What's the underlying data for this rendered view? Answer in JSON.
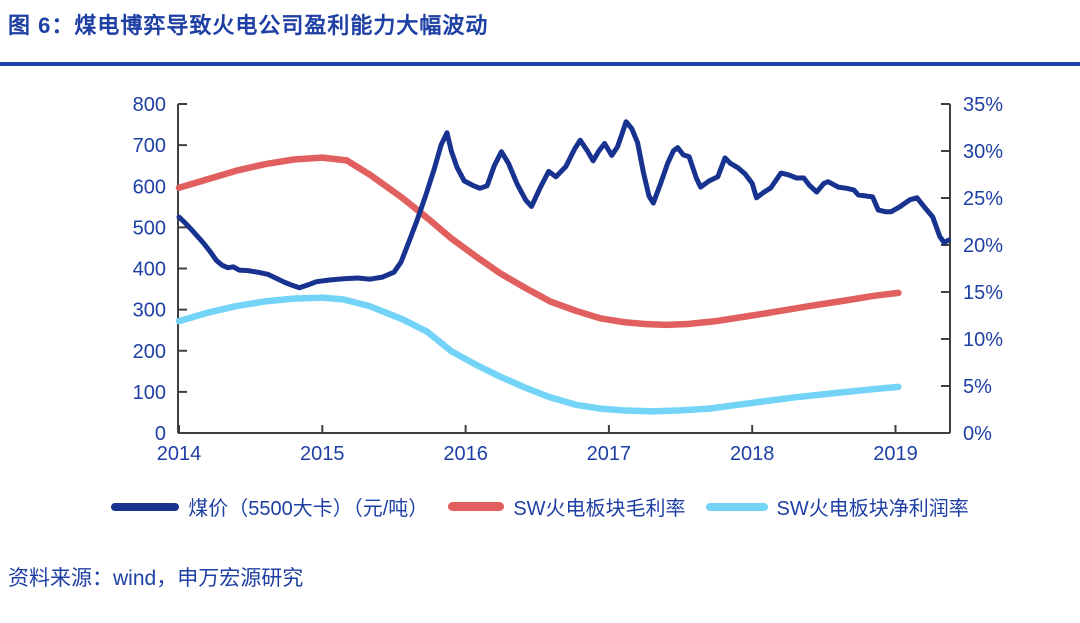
{
  "title": "图 6：煤电博弈导致火电公司盈利能力大幅波动",
  "source": "资料来源：wind，申万宏源研究",
  "colors": {
    "navy_text": "#1e3fa4",
    "coal_line": "#17338f",
    "gross_margin_line": "#e25f5f",
    "net_margin_line": "#74d4f8",
    "axis_line": "#3f3f3f",
    "title_rule": "#1e3fa4"
  },
  "legend": [
    {
      "label": "煤价（5500大卡）（元/吨）",
      "series": "coal-price"
    },
    {
      "label": "SW火电板块毛利率",
      "series": "gross-margin"
    },
    {
      "label": "SW火电板块净利润率",
      "series": "net-margin"
    }
  ],
  "chart_data": {
    "type": "line",
    "title": "图 6：煤电博弈导致火电公司盈利能力大幅波动",
    "x_axis": {
      "labels": [
        "2014",
        "2015",
        "2016",
        "2017",
        "2018",
        "2019"
      ],
      "range": [
        2014,
        2019.39
      ],
      "grid": false
    },
    "left_axis": {
      "labels": [
        "800",
        "700",
        "600",
        "500",
        "400",
        "300",
        "200",
        "100",
        "0"
      ],
      "range": [
        0,
        800
      ],
      "units": "元/吨"
    },
    "right_axis": {
      "labels": [
        "35%",
        "30%",
        "25%",
        "20%",
        "15%",
        "10%",
        "5%",
        "0%"
      ],
      "range": [
        0,
        35
      ],
      "units": "%"
    },
    "legend_position": "bottom",
    "series": [
      {
        "name": "煤价（5500大卡）（元/吨）",
        "axis": "left",
        "color": "#17338f",
        "width": 5,
        "points": [
          [
            2014.0,
            525
          ],
          [
            2014.04,
            512
          ],
          [
            2014.08,
            497
          ],
          [
            2014.13,
            478
          ],
          [
            2014.17,
            462
          ],
          [
            2014.22,
            440
          ],
          [
            2014.26,
            420
          ],
          [
            2014.3,
            408
          ],
          [
            2014.34,
            402
          ],
          [
            2014.38,
            404
          ],
          [
            2014.42,
            396
          ],
          [
            2014.48,
            395
          ],
          [
            2014.55,
            391
          ],
          [
            2014.62,
            386
          ],
          [
            2014.68,
            376
          ],
          [
            2014.74,
            366
          ],
          [
            2014.8,
            358
          ],
          [
            2014.84,
            353
          ],
          [
            2014.9,
            360
          ],
          [
            2014.96,
            368
          ],
          [
            2015.05,
            372
          ],
          [
            2015.15,
            375
          ],
          [
            2015.25,
            377
          ],
          [
            2015.33,
            374
          ],
          [
            2015.42,
            379
          ],
          [
            2015.5,
            391
          ],
          [
            2015.55,
            416
          ],
          [
            2015.6,
            461
          ],
          [
            2015.66,
            516
          ],
          [
            2015.72,
            576
          ],
          [
            2015.78,
            641
          ],
          [
            2015.83,
            701
          ],
          [
            2015.87,
            730
          ],
          [
            2015.9,
            686
          ],
          [
            2015.94,
            646
          ],
          [
            2015.99,
            613
          ],
          [
            2016.05,
            602
          ],
          [
            2016.1,
            595
          ],
          [
            2016.15,
            601
          ],
          [
            2016.2,
            650
          ],
          [
            2016.25,
            684
          ],
          [
            2016.3,
            655
          ],
          [
            2016.36,
            605
          ],
          [
            2016.42,
            566
          ],
          [
            2016.46,
            551
          ],
          [
            2016.52,
            596
          ],
          [
            2016.58,
            636
          ],
          [
            2016.63,
            623
          ],
          [
            2016.7,
            648
          ],
          [
            2016.76,
            690
          ],
          [
            2016.8,
            712
          ],
          [
            2016.85,
            686
          ],
          [
            2016.89,
            662
          ],
          [
            2016.93,
            686
          ],
          [
            2016.97,
            704
          ],
          [
            2017.02,
            675
          ],
          [
            2017.06,
            696
          ],
          [
            2017.09,
            726
          ],
          [
            2017.12,
            757
          ],
          [
            2017.16,
            740
          ],
          [
            2017.2,
            706
          ],
          [
            2017.24,
            635
          ],
          [
            2017.28,
            576
          ],
          [
            2017.31,
            559
          ],
          [
            2017.36,
            606
          ],
          [
            2017.41,
            656
          ],
          [
            2017.45,
            686
          ],
          [
            2017.48,
            694
          ],
          [
            2017.52,
            676
          ],
          [
            2017.56,
            672
          ],
          [
            2017.61,
            620
          ],
          [
            2017.64,
            598
          ],
          [
            2017.7,
            613
          ],
          [
            2017.76,
            623
          ],
          [
            2017.81,
            669
          ],
          [
            2017.85,
            655
          ],
          [
            2017.9,
            645
          ],
          [
            2017.95,
            630
          ],
          [
            2018.0,
            607
          ],
          [
            2018.03,
            572
          ],
          [
            2018.08,
            585
          ],
          [
            2018.13,
            596
          ],
          [
            2018.2,
            632
          ],
          [
            2018.25,
            628
          ],
          [
            2018.31,
            620
          ],
          [
            2018.36,
            620
          ],
          [
            2018.4,
            602
          ],
          [
            2018.45,
            586
          ],
          [
            2018.5,
            607
          ],
          [
            2018.53,
            611
          ],
          [
            2018.6,
            598
          ],
          [
            2018.66,
            595
          ],
          [
            2018.71,
            591
          ],
          [
            2018.74,
            579
          ],
          [
            2018.8,
            576
          ],
          [
            2018.84,
            574
          ],
          [
            2018.88,
            542
          ],
          [
            2018.93,
            538
          ],
          [
            2018.97,
            538
          ],
          [
            2019.03,
            550
          ],
          [
            2019.1,
            567
          ],
          [
            2019.15,
            572
          ],
          [
            2019.2,
            550
          ],
          [
            2019.26,
            525
          ],
          [
            2019.31,
            477
          ],
          [
            2019.34,
            463
          ],
          [
            2019.37,
            469
          ]
        ]
      },
      {
        "name": "SW火电板块毛利率",
        "axis": "right",
        "color": "#e25f5f",
        "width": 6.5,
        "points": [
          [
            2014.0,
            26.1
          ],
          [
            2014.2,
            27.0
          ],
          [
            2014.4,
            27.9
          ],
          [
            2014.6,
            28.6
          ],
          [
            2014.8,
            29.1
          ],
          [
            2015.0,
            29.3
          ],
          [
            2015.17,
            29.0
          ],
          [
            2015.33,
            27.5
          ],
          [
            2015.56,
            25.0
          ],
          [
            2015.73,
            22.9
          ],
          [
            2015.9,
            20.7
          ],
          [
            2016.08,
            18.7
          ],
          [
            2016.24,
            17.0
          ],
          [
            2016.42,
            15.4
          ],
          [
            2016.59,
            14.0
          ],
          [
            2016.77,
            13.0
          ],
          [
            2016.94,
            12.2
          ],
          [
            2017.1,
            11.8
          ],
          [
            2017.25,
            11.6
          ],
          [
            2017.4,
            11.5
          ],
          [
            2017.55,
            11.6
          ],
          [
            2017.75,
            11.9
          ],
          [
            2018.0,
            12.5
          ],
          [
            2018.2,
            13.0
          ],
          [
            2018.4,
            13.5
          ],
          [
            2018.65,
            14.1
          ],
          [
            2018.85,
            14.6
          ],
          [
            2019.02,
            14.9
          ]
        ]
      },
      {
        "name": "SW火电板块净利润率",
        "axis": "right",
        "color": "#74d4f8",
        "width": 6.5,
        "points": [
          [
            2014.0,
            11.9
          ],
          [
            2014.2,
            12.8
          ],
          [
            2014.4,
            13.5
          ],
          [
            2014.6,
            14.0
          ],
          [
            2014.8,
            14.3
          ],
          [
            2015.0,
            14.4
          ],
          [
            2015.15,
            14.2
          ],
          [
            2015.33,
            13.5
          ],
          [
            2015.56,
            12.1
          ],
          [
            2015.73,
            10.8
          ],
          [
            2015.9,
            8.7
          ],
          [
            2016.08,
            7.2
          ],
          [
            2016.24,
            6.0
          ],
          [
            2016.42,
            4.8
          ],
          [
            2016.59,
            3.8
          ],
          [
            2016.77,
            3.0
          ],
          [
            2016.94,
            2.6
          ],
          [
            2017.1,
            2.4
          ],
          [
            2017.3,
            2.3
          ],
          [
            2017.5,
            2.4
          ],
          [
            2017.7,
            2.6
          ],
          [
            2017.9,
            3.0
          ],
          [
            2018.1,
            3.4
          ],
          [
            2018.3,
            3.8
          ],
          [
            2018.55,
            4.2
          ],
          [
            2018.8,
            4.6
          ],
          [
            2019.02,
            4.9
          ]
        ]
      }
    ]
  }
}
